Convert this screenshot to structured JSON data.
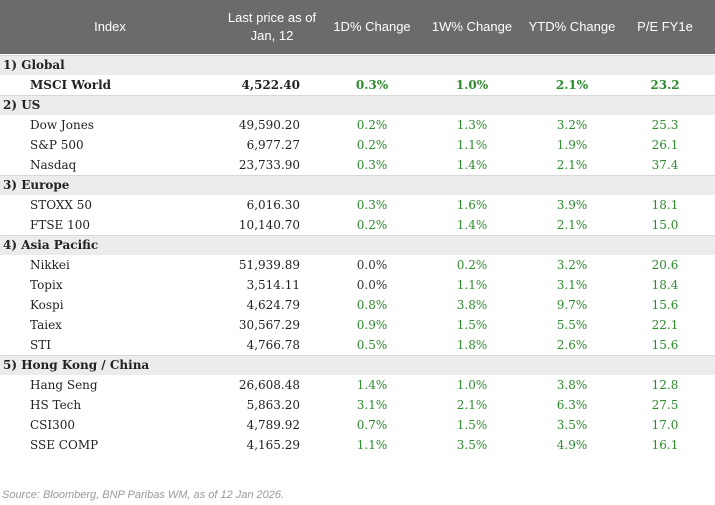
{
  "header": {
    "columns": [
      "Index",
      "Last price as of Jan, 12",
      "1D% Change",
      "1W% Change",
      "YTD% Change",
      "P/E FY1e"
    ]
  },
  "groups": [
    {
      "label": "1) Global",
      "rows": [
        [
          "MSCI World",
          "4,522.40",
          "0.3%",
          "1.0%",
          "2.1%",
          "23.2"
        ]
      ]
    },
    {
      "label": "2) US",
      "rows": [
        [
          "Dow Jones",
          "49,590.20",
          "0.2%",
          "1.3%",
          "3.2%",
          "25.3"
        ],
        [
          "S&P 500",
          "6,977.27",
          "0.2%",
          "1.1%",
          "1.9%",
          "26.1"
        ],
        [
          "Nasdaq",
          "23,733.90",
          "0.3%",
          "1.4%",
          "2.1%",
          "37.4"
        ]
      ]
    },
    {
      "label": "3) Europe",
      "rows": [
        [
          "STOXX 50",
          "6,016.30",
          "0.3%",
          "1.6%",
          "3.9%",
          "18.1"
        ],
        [
          "FTSE 100",
          "10,140.70",
          "0.2%",
          "1.4%",
          "2.1%",
          "15.0"
        ]
      ]
    },
    {
      "label": "4) Asia Pacific",
      "rows": [
        [
          "Nikkei",
          "51,939.89",
          "0.0%",
          "0.2%",
          "3.2%",
          "20.6"
        ],
        [
          "Topix",
          "3,514.11",
          "0.0%",
          "1.1%",
          "3.1%",
          "18.4"
        ],
        [
          "Kospi",
          "4,624.79",
          "0.8%",
          "3.8%",
          "9.7%",
          "15.6"
        ],
        [
          "Taiex",
          "30,567.29",
          "0.9%",
          "1.5%",
          "5.5%",
          "22.1"
        ],
        [
          "STI",
          "4,766.78",
          "0.5%",
          "1.8%",
          "2.6%",
          "15.6"
        ]
      ]
    },
    {
      "label": "5) Hong Kong / China",
      "rows": [
        [
          "Hang Seng",
          "26,608.48",
          "1.4%",
          "1.0%",
          "3.8%",
          "12.8"
        ],
        [
          "HS Tech",
          "5,863.20",
          "3.1%",
          "2.1%",
          "6.3%",
          "27.5"
        ],
        [
          "CSI300",
          "4,789.92",
          "0.7%",
          "1.5%",
          "3.5%",
          "17.0"
        ],
        [
          "SSE COMP",
          "4,165.29",
          "1.1%",
          "3.5%",
          "4.9%",
          "16.1"
        ]
      ]
    }
  ],
  "source": "Source: Bloomberg, BNP Paribas WM, as of 12 Jan 2026."
}
